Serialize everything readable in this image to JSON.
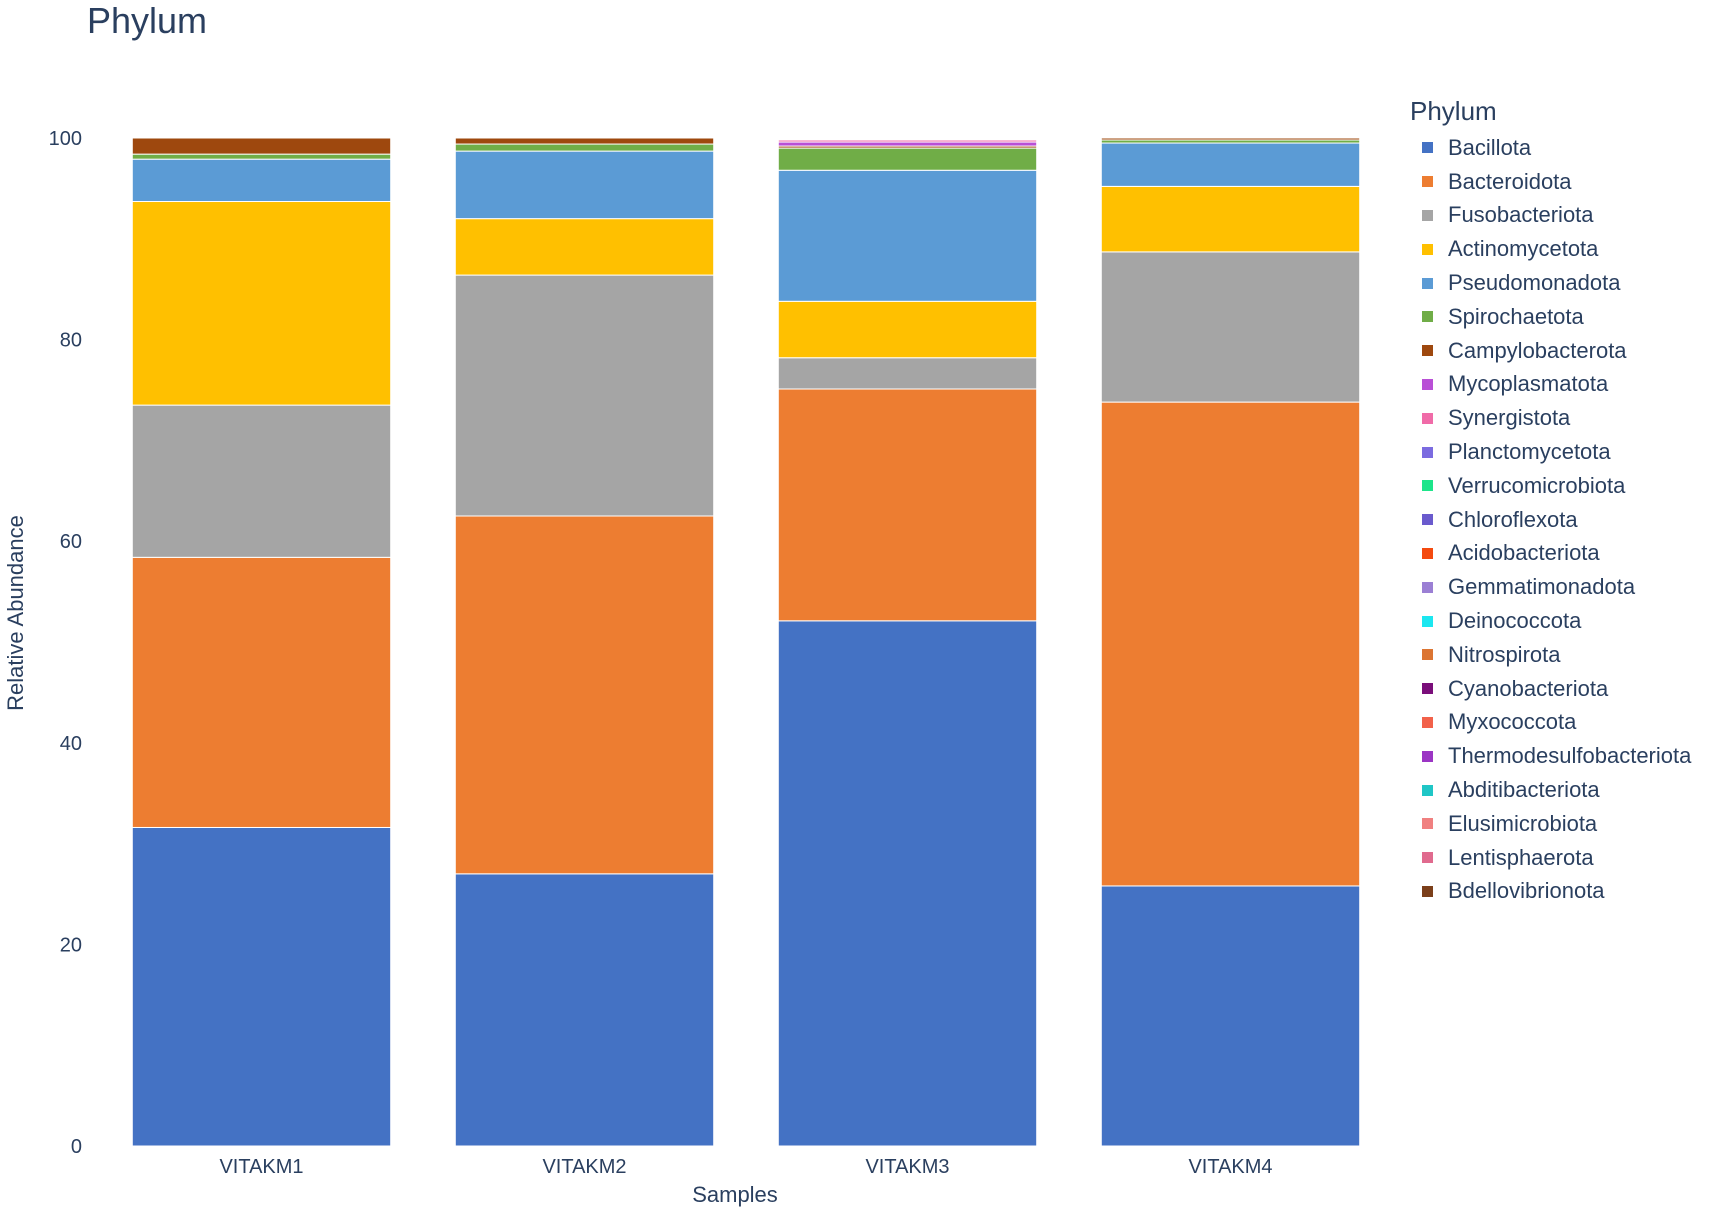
{
  "chart_data": {
    "type": "bar",
    "stacked": true,
    "title": "Phylum",
    "xlabel": "Samples",
    "ylabel": "Relative Abundance",
    "ylim": [
      0,
      100
    ],
    "yticks": [
      0,
      20,
      40,
      60,
      80,
      100
    ],
    "categories": [
      "VITAKM1",
      "VITAKM2",
      "VITAKM3",
      "VITAKM4"
    ],
    "legend_title": "Phylum",
    "legend_position": "right",
    "grid": false,
    "series": [
      {
        "name": "Bacillota",
        "color": "#4472c4",
        "values": [
          31.6,
          27.0,
          52.1,
          25.8
        ]
      },
      {
        "name": "Bacteroidota",
        "color": "#ed7d31",
        "values": [
          26.8,
          35.5,
          23.0,
          48.0
        ]
      },
      {
        "name": "Fusobacteriota",
        "color": "#a5a5a5",
        "values": [
          15.1,
          23.9,
          3.1,
          14.9
        ]
      },
      {
        "name": "Actinomycetota",
        "color": "#ffc000",
        "values": [
          20.2,
          5.6,
          5.6,
          6.5
        ]
      },
      {
        "name": "Pseudomonadota",
        "color": "#5b9bd5",
        "values": [
          4.2,
          6.7,
          13.0,
          4.3
        ]
      },
      {
        "name": "Spirochaetota",
        "color": "#70ad47",
        "values": [
          0.5,
          0.7,
          2.2,
          0.3
        ]
      },
      {
        "name": "Campylobacterota",
        "color": "#9e480e",
        "values": [
          1.6,
          0.6,
          0.2,
          0.2
        ]
      },
      {
        "name": "Mycoplasmatota",
        "color": "#b94fd6",
        "values": [
          0.0,
          0.0,
          0.4,
          0.0
        ]
      },
      {
        "name": "Synergistota",
        "color": "#f06ba8",
        "values": [
          0.0,
          0.0,
          0.2,
          0.0
        ]
      },
      {
        "name": "Planctomycetota",
        "color": "#7b6be0",
        "values": [
          0.0,
          0.0,
          0.0,
          0.0
        ]
      },
      {
        "name": "Verrucomicrobiota",
        "color": "#1de58a",
        "values": [
          0.0,
          0.0,
          0.0,
          0.0
        ]
      },
      {
        "name": "Chloroflexota",
        "color": "#6a5acd",
        "values": [
          0.0,
          0.0,
          0.0,
          0.0
        ]
      },
      {
        "name": "Acidobacteriota",
        "color": "#f44a0f",
        "values": [
          0.0,
          0.0,
          0.0,
          0.0
        ]
      },
      {
        "name": "Gemmatimonadota",
        "color": "#9b7fd4",
        "values": [
          0.0,
          0.0,
          0.0,
          0.0
        ]
      },
      {
        "name": "Deinococcota",
        "color": "#1be7f0",
        "values": [
          0.0,
          0.0,
          0.0,
          0.0
        ]
      },
      {
        "name": "Nitrospirota",
        "color": "#dc7532",
        "values": [
          0.0,
          0.0,
          0.0,
          0.0
        ]
      },
      {
        "name": "Cyanobacteriota",
        "color": "#7a0e7a",
        "values": [
          0.0,
          0.0,
          0.0,
          0.0
        ]
      },
      {
        "name": "Myxococcota",
        "color": "#f2614a",
        "values": [
          0.0,
          0.0,
          0.0,
          0.0
        ]
      },
      {
        "name": "Thermodesulfobacteriota",
        "color": "#9b35c4",
        "values": [
          0.0,
          0.0,
          0.0,
          0.0
        ]
      },
      {
        "name": "Abditibacteriota",
        "color": "#1fc6c6",
        "values": [
          0.0,
          0.0,
          0.0,
          0.0
        ]
      },
      {
        "name": "Elusimicrobiota",
        "color": "#f08080",
        "values": [
          0.0,
          0.0,
          0.0,
          0.0
        ]
      },
      {
        "name": "Lentisphaerota",
        "color": "#e06a8e",
        "values": [
          0.0,
          0.0,
          0.0,
          0.0
        ]
      },
      {
        "name": "Bdellovibrionota",
        "color": "#7b3f1a",
        "values": [
          0.0,
          0.0,
          0.0,
          0.0
        ]
      }
    ]
  }
}
